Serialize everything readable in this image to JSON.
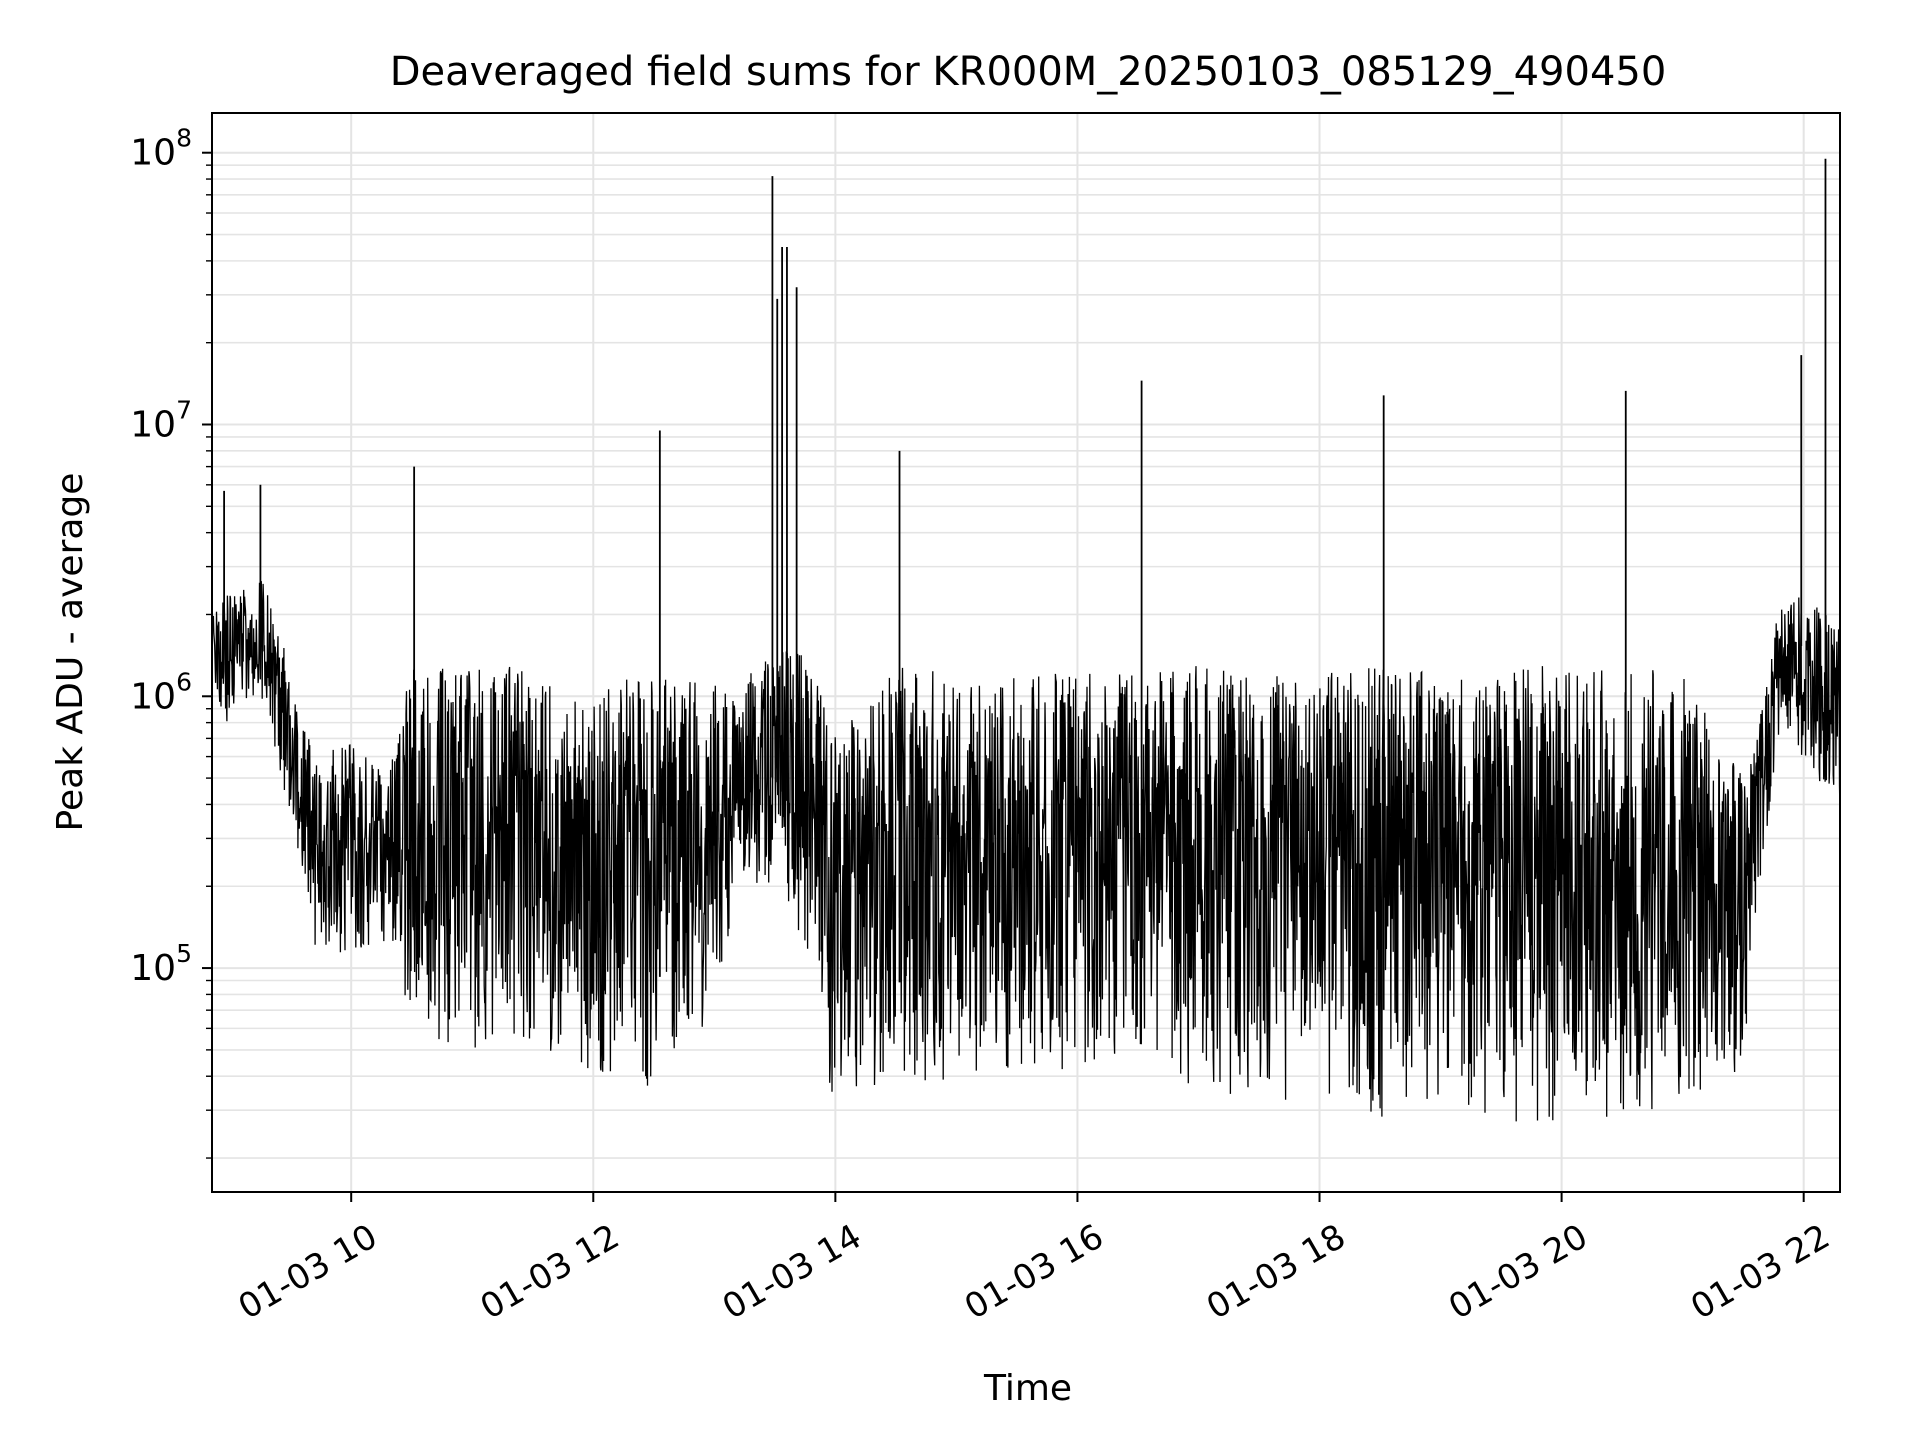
{
  "chart_data": {
    "type": "line",
    "title": "Deaveraged field sums for KR000M_20250103_085129_490450",
    "xlabel": "Time",
    "ylabel": "Peak ADU - average",
    "x_unit": "hour",
    "xlim": [
      8.85,
      22.3
    ],
    "ylim": [
      15000,
      140000000
    ],
    "y_scale": "log",
    "grid": true,
    "line_color": "#000000",
    "grid_color": "#e4e4e4",
    "x_ticks": [
      {
        "value": 10,
        "label": "01-03 10"
      },
      {
        "value": 12,
        "label": "01-03 12"
      },
      {
        "value": 14,
        "label": "01-03 14"
      },
      {
        "value": 16,
        "label": "01-03 16"
      },
      {
        "value": 18,
        "label": "01-03 18"
      },
      {
        "value": 20,
        "label": "01-03 20"
      },
      {
        "value": 22,
        "label": "01-03 22"
      }
    ],
    "y_ticks": [
      {
        "value": 100000,
        "base": "10",
        "exp": "5"
      },
      {
        "value": 1000000,
        "base": "10",
        "exp": "6"
      },
      {
        "value": 10000000,
        "base": "10",
        "exp": "7"
      },
      {
        "value": 100000000,
        "base": "10",
        "exp": "8"
      }
    ],
    "envelope": [
      [
        8.85,
        650000,
        2200000
      ],
      [
        9.1,
        1000000,
        2500000
      ],
      [
        9.3,
        900000,
        2800000
      ],
      [
        9.5,
        350000,
        1200000
      ],
      [
        9.7,
        120000,
        600000
      ],
      [
        10.0,
        110000,
        700000
      ],
      [
        10.3,
        120000,
        500000
      ],
      [
        10.5,
        55000,
        1300000
      ],
      [
        11.0,
        50000,
        1300000
      ],
      [
        11.5,
        50000,
        1300000
      ],
      [
        12.0,
        40000,
        1100000
      ],
      [
        12.5,
        35000,
        1200000
      ],
      [
        13.0,
        60000,
        1100000
      ],
      [
        13.2,
        200000,
        1100000
      ],
      [
        13.5,
        200000,
        1500000
      ],
      [
        13.85,
        100000,
        1400000
      ],
      [
        13.95,
        35000,
        700000
      ],
      [
        14.5,
        35000,
        1300000
      ],
      [
        15.0,
        40000,
        1200000
      ],
      [
        15.5,
        40000,
        1200000
      ],
      [
        16.0,
        40000,
        1300000
      ],
      [
        16.5,
        50000,
        1200000
      ],
      [
        17.0,
        35000,
        1300000
      ],
      [
        17.5,
        32000,
        1200000
      ],
      [
        18.0,
        30000,
        1200000
      ],
      [
        18.5,
        28000,
        1300000
      ],
      [
        19.0,
        27000,
        1200000
      ],
      [
        19.5,
        27000,
        1300000
      ],
      [
        20.0,
        27000,
        1300000
      ],
      [
        20.5,
        28000,
        1300000
      ],
      [
        21.0,
        30000,
        1200000
      ],
      [
        21.5,
        40000,
        500000
      ],
      [
        21.6,
        150000,
        700000
      ],
      [
        21.8,
        700000,
        2200000
      ],
      [
        22.0,
        600000,
        2400000
      ],
      [
        22.3,
        350000,
        1800000
      ]
    ],
    "spikes": [
      [
        8.95,
        5700000
      ],
      [
        9.25,
        6000000
      ],
      [
        10.52,
        7000000
      ],
      [
        12.55,
        9500000
      ],
      [
        13.48,
        82000000
      ],
      [
        13.52,
        29000000
      ],
      [
        13.56,
        45000000
      ],
      [
        13.6,
        45000000
      ],
      [
        13.68,
        32000000
      ],
      [
        14.53,
        8000000
      ],
      [
        16.53,
        14500000
      ],
      [
        18.53,
        12800000
      ],
      [
        20.53,
        13300000
      ],
      [
        21.98,
        18000000
      ],
      [
        22.18,
        95000000
      ]
    ]
  }
}
